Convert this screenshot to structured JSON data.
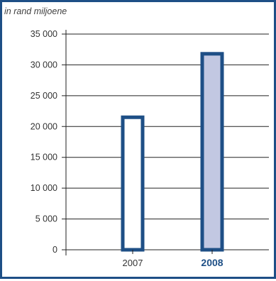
{
  "colors": {
    "frame": "#1e4f86",
    "bar_outline": "#1e4f86",
    "bar_fill_2007": "#ffffff",
    "bar_fill_2008": "#c2c8e2",
    "gridline": "#222222"
  },
  "chart_data": {
    "type": "bar",
    "title": "",
    "ylabel": "in rand miljoene",
    "xlabel": "",
    "categories": [
      "2007",
      "2008"
    ],
    "values": [
      21500,
      31800
    ],
    "highlighted_category": "2008",
    "ylim": [
      0,
      35000
    ],
    "yticks": [
      0,
      5000,
      10000,
      15000,
      20000,
      25000,
      30000,
      35000
    ],
    "ytick_labels": [
      "0",
      "5 000",
      "10 000",
      "15 000",
      "20 000",
      "25 000",
      "30 000",
      "35 000"
    ],
    "grid": true
  }
}
